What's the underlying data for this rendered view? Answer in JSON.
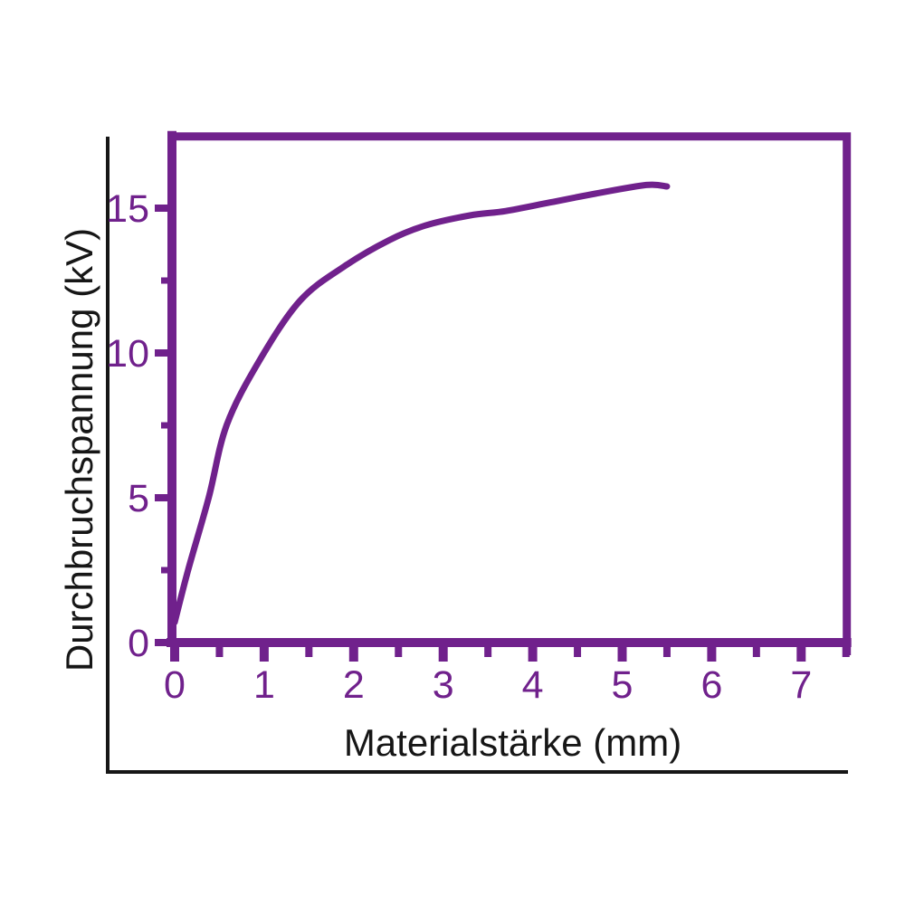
{
  "figure": {
    "background": "#ffffff",
    "accent_color": "#70218c",
    "frame_color": "#161616"
  },
  "chart_data": {
    "type": "line",
    "title": "",
    "xlabel": "Materialstärke (mm)",
    "ylabel": "Durchbruchspannung (kV)",
    "xlim": [
      0,
      7.55
    ],
    "ylim": [
      0,
      17.6
    ],
    "x_ticks_major": [
      0,
      1,
      2,
      3,
      4,
      5,
      6,
      7
    ],
    "x_ticks_minor": [
      0.5,
      1.5,
      2.5,
      3.5,
      4.5,
      5.5,
      6.5,
      7.5
    ],
    "y_ticks_major": [
      0,
      5,
      10,
      15
    ],
    "y_ticks_minor": [
      2.5,
      7.5,
      12.5
    ],
    "grid": false,
    "legend": false,
    "line_color": "#70218c",
    "tick_label_color": "#70218c",
    "series": [
      {
        "name": "Durchbruchspannung",
        "points": [
          [
            0,
            0.7
          ],
          [
            0.15,
            2.5
          ],
          [
            0.38,
            5.0
          ],
          [
            0.58,
            7.5
          ],
          [
            0.94,
            9.7
          ],
          [
            1.4,
            11.8
          ],
          [
            1.9,
            13.0
          ],
          [
            2.4,
            13.9
          ],
          [
            2.8,
            14.4
          ],
          [
            3.3,
            14.75
          ],
          [
            3.7,
            14.9
          ],
          [
            4.2,
            15.2
          ],
          [
            4.7,
            15.5
          ],
          [
            5.27,
            15.8
          ],
          [
            5.5,
            15.75
          ]
        ]
      }
    ]
  }
}
